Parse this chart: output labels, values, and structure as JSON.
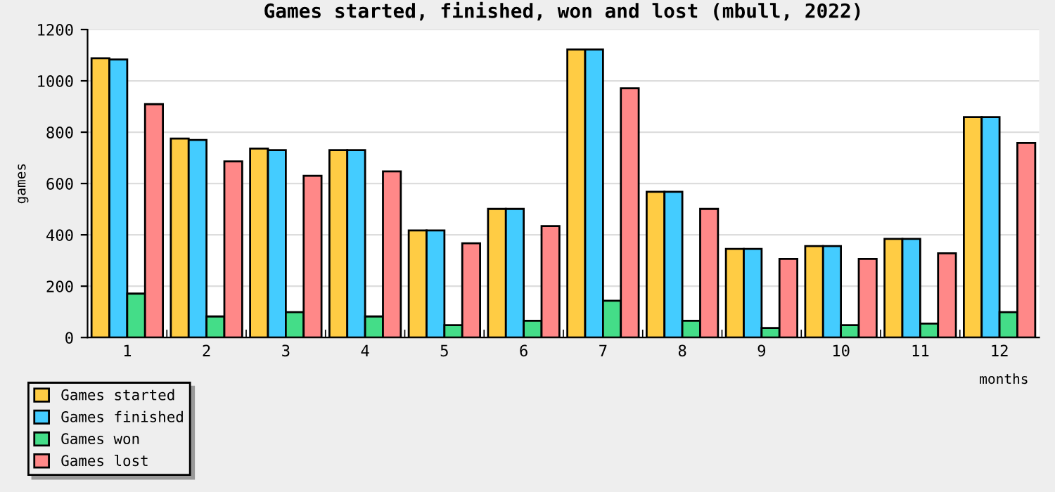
{
  "chart_data": {
    "type": "bar",
    "title": "Games started, finished, won and lost (mbull, 2022)",
    "xlabel": "months",
    "ylabel": "games",
    "categories": [
      "1",
      "2",
      "3",
      "4",
      "5",
      "6",
      "7",
      "8",
      "9",
      "10",
      "11",
      "12"
    ],
    "series": [
      {
        "name": "Games started",
        "color": "#ffcc44",
        "values": [
          1088,
          775,
          736,
          730,
          417,
          501,
          1122,
          568,
          345,
          356,
          384,
          859
        ]
      },
      {
        "name": "Games finished",
        "color": "#44ccff",
        "values": [
          1083,
          770,
          730,
          730,
          417,
          501,
          1122,
          568,
          345,
          356,
          384,
          859
        ]
      },
      {
        "name": "Games won",
        "color": "#44dd88",
        "values": [
          171,
          82,
          99,
          82,
          48,
          65,
          143,
          65,
          37,
          48,
          54,
          99
        ]
      },
      {
        "name": "Games lost",
        "color": "#ff8888",
        "values": [
          909,
          686,
          630,
          647,
          367,
          434,
          971,
          501,
          306,
          306,
          328,
          758
        ]
      }
    ],
    "ylim": [
      0,
      1200
    ],
    "yticks": [
      0,
      200,
      400,
      600,
      800,
      1000,
      1200
    ],
    "grid": "y",
    "legend": "bottom left"
  }
}
